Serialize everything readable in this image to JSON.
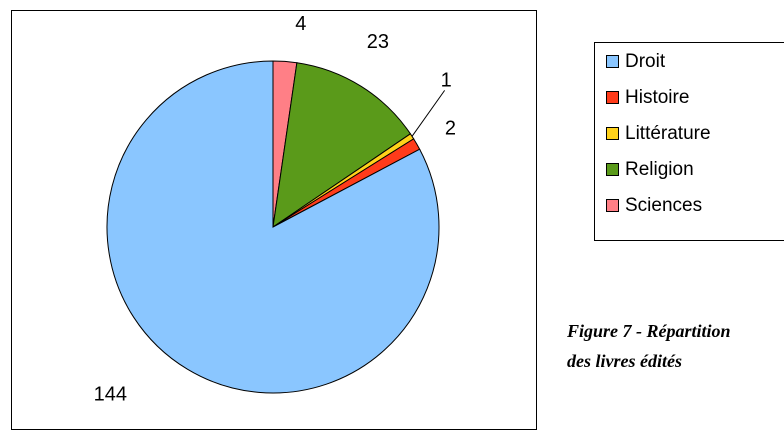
{
  "chart_data": {
    "type": "pie",
    "categories": [
      "Droit",
      "Histoire",
      "Littérature",
      "Religion",
      "Sciences"
    ],
    "values": [
      144,
      2,
      1,
      23,
      4
    ],
    "colors": [
      "#8ac6ff",
      "#ff3b1a",
      "#ffd21a",
      "#5a9a1a",
      "#ff7f86"
    ],
    "labels": [
      "144",
      "2",
      "1",
      "23",
      "4"
    ],
    "slice_order": [
      "Sciences",
      "Religion",
      "Littérature",
      "Histoire",
      "Droit"
    ],
    "start_angle": "12 o'clock",
    "direction": "clockwise",
    "legend": {
      "position": "right",
      "entries": [
        "Droit",
        "Histoire",
        "Littérature",
        "Religion",
        "Sciences"
      ]
    }
  },
  "caption": {
    "line1": "Figure 7 - Répartition",
    "line2": "des livres édités"
  }
}
